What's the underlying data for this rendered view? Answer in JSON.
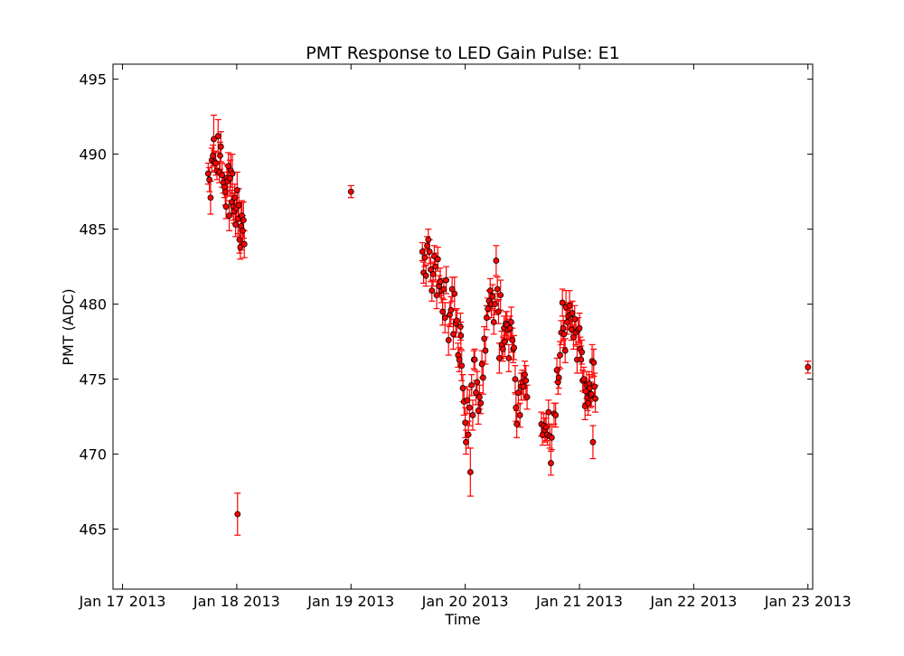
{
  "chart_data": {
    "type": "scatter",
    "title": "PMT Response to LED Gain Pulse: E1",
    "xlabel": "Time",
    "ylabel": "PMT (ADC)",
    "x_ticks": [
      "Jan 17 2013",
      "Jan 18 2013",
      "Jan 19 2013",
      "Jan 20 2013",
      "Jan 21 2013",
      "Jan 22 2013",
      "Jan 23 2013"
    ],
    "y_ticks": [
      465,
      470,
      475,
      480,
      485,
      490,
      495
    ],
    "xlim": [
      "2013-01-16 22:00",
      "2013-01-23 01:00"
    ],
    "ylim": [
      461,
      496
    ],
    "grid": false,
    "marker_color": "#ff0000",
    "errorbar_color": "#ff0000",
    "marker_edge_color": "#000000",
    "points": [
      {
        "x": "2013-01-17 18:00",
        "y": 488.7,
        "err": 0.7
      },
      {
        "x": "2013-01-17 18:15",
        "y": 488.3,
        "err": 0.8
      },
      {
        "x": "2013-01-17 18:30",
        "y": 487.1,
        "err": 1.1
      },
      {
        "x": "2013-01-17 18:45",
        "y": 489.6,
        "err": 0.8
      },
      {
        "x": "2013-01-17 19:00",
        "y": 489.9,
        "err": 0.7
      },
      {
        "x": "2013-01-17 19:10",
        "y": 491.0,
        "err": 1.6
      },
      {
        "x": "2013-01-17 19:20",
        "y": 489.5,
        "err": 0.6
      },
      {
        "x": "2013-01-17 19:35",
        "y": 489.4,
        "err": 0.8
      },
      {
        "x": "2013-01-17 19:50",
        "y": 488.9,
        "err": 0.6
      },
      {
        "x": "2013-01-17 20:05",
        "y": 491.2,
        "err": 1.1
      },
      {
        "x": "2013-01-17 20:20",
        "y": 488.8,
        "err": 0.7
      },
      {
        "x": "2013-01-17 20:30",
        "y": 489.9,
        "err": 0.9
      },
      {
        "x": "2013-01-17 20:40",
        "y": 490.5,
        "err": 1.0
      },
      {
        "x": "2013-01-17 20:55",
        "y": 488.6,
        "err": 0.8
      },
      {
        "x": "2013-01-17 21:10",
        "y": 488.1,
        "err": 0.7
      },
      {
        "x": "2013-01-17 21:25",
        "y": 487.8,
        "err": 0.7
      },
      {
        "x": "2013-01-17 21:35",
        "y": 487.5,
        "err": 0.9
      },
      {
        "x": "2013-01-17 21:45",
        "y": 486.5,
        "err": 0.8
      },
      {
        "x": "2013-01-17 21:55",
        "y": 488.4,
        "err": 0.9
      },
      {
        "x": "2013-01-17 22:05",
        "y": 488.2,
        "err": 1.0
      },
      {
        "x": "2013-01-17 22:15",
        "y": 489.2,
        "err": 0.9
      },
      {
        "x": "2013-01-17 22:25",
        "y": 485.9,
        "err": 1.0
      },
      {
        "x": "2013-01-17 22:35",
        "y": 488.4,
        "err": 1.2
      },
      {
        "x": "2013-01-17 22:45",
        "y": 488.9,
        "err": 1.1
      },
      {
        "x": "2013-01-17 22:55",
        "y": 486.8,
        "err": 0.8
      },
      {
        "x": "2013-01-17 23:05",
        "y": 488.7,
        "err": 1.3
      },
      {
        "x": "2013-01-17 23:15",
        "y": 486.5,
        "err": 0.9
      },
      {
        "x": "2013-01-17 23:25",
        "y": 486.2,
        "err": 0.8
      },
      {
        "x": "2013-01-17 23:35",
        "y": 487.1,
        "err": 0.9
      },
      {
        "x": "2013-01-17 23:45",
        "y": 485.3,
        "err": 0.8
      },
      {
        "x": "2013-01-17 23:55",
        "y": 486.4,
        "err": 0.7
      },
      {
        "x": "2013-01-18 00:05",
        "y": 487.6,
        "err": 1.2
      },
      {
        "x": "2013-01-18 00:15",
        "y": 485.7,
        "err": 1.0
      },
      {
        "x": "2013-01-18 00:25",
        "y": 486.6,
        "err": 1.1
      },
      {
        "x": "2013-01-18 00:35",
        "y": 484.3,
        "err": 0.9
      },
      {
        "x": "2013-01-18 00:45",
        "y": 483.8,
        "err": 0.8
      },
      {
        "x": "2013-01-18 00:55",
        "y": 485.2,
        "err": 1.6
      },
      {
        "x": "2013-01-18 01:05",
        "y": 485.9,
        "err": 1.0
      },
      {
        "x": "2013-01-18 01:15",
        "y": 484.9,
        "err": 1.0
      },
      {
        "x": "2013-01-18 01:25",
        "y": 485.6,
        "err": 1.2
      },
      {
        "x": "2013-01-18 01:35",
        "y": 484.0,
        "err": 0.9
      },
      {
        "x": "2013-01-18 00:10",
        "y": 466.0,
        "err": 1.4
      },
      {
        "x": "2013-01-19 00:00",
        "y": 487.5,
        "err": 0.4
      },
      {
        "x": "2013-01-19 15:00",
        "y": 483.5,
        "err": 0.6
      },
      {
        "x": "2013-01-19 15:15",
        "y": 482.1,
        "err": 0.7
      },
      {
        "x": "2013-01-19 15:30",
        "y": 483.1,
        "err": 0.6
      },
      {
        "x": "2013-01-19 15:45",
        "y": 481.9,
        "err": 0.7
      },
      {
        "x": "2013-01-19 16:00",
        "y": 483.9,
        "err": 0.6
      },
      {
        "x": "2013-01-19 16:15",
        "y": 484.3,
        "err": 0.7
      },
      {
        "x": "2013-01-19 16:30",
        "y": 483.5,
        "err": 0.8
      },
      {
        "x": "2013-01-19 16:45",
        "y": 482.3,
        "err": 0.8
      },
      {
        "x": "2013-01-19 17:00",
        "y": 480.9,
        "err": 0.7
      },
      {
        "x": "2013-01-19 17:15",
        "y": 482.0,
        "err": 0.8
      },
      {
        "x": "2013-01-19 17:30",
        "y": 483.2,
        "err": 0.7
      },
      {
        "x": "2013-01-19 17:45",
        "y": 482.5,
        "err": 0.9
      },
      {
        "x": "2013-01-19 18:00",
        "y": 480.6,
        "err": 0.9
      },
      {
        "x": "2013-01-19 18:15",
        "y": 483.0,
        "err": 0.8
      },
      {
        "x": "2013-01-19 18:30",
        "y": 481.2,
        "err": 0.7
      },
      {
        "x": "2013-01-19 18:45",
        "y": 481.5,
        "err": 0.9
      },
      {
        "x": "2013-01-19 19:00",
        "y": 480.9,
        "err": 0.8
      },
      {
        "x": "2013-01-19 19:15",
        "y": 479.5,
        "err": 0.9
      },
      {
        "x": "2013-01-19 19:30",
        "y": 481.0,
        "err": 0.7
      },
      {
        "x": "2013-01-19 19:45",
        "y": 479.1,
        "err": 1.0
      },
      {
        "x": "2013-01-19 20:00",
        "y": 481.6,
        "err": 0.9
      },
      {
        "x": "2013-01-19 20:30",
        "y": 477.6,
        "err": 1.0
      },
      {
        "x": "2013-01-19 20:45",
        "y": 479.3,
        "err": 0.8
      },
      {
        "x": "2013-01-19 21:00",
        "y": 479.6,
        "err": 0.9
      },
      {
        "x": "2013-01-19 21:15",
        "y": 481.0,
        "err": 0.8
      },
      {
        "x": "2013-01-19 21:30",
        "y": 478.0,
        "err": 1.0
      },
      {
        "x": "2013-01-19 21:45",
        "y": 480.7,
        "err": 1.1
      },
      {
        "x": "2013-01-19 22:00",
        "y": 478.7,
        "err": 0.9
      },
      {
        "x": "2013-01-19 22:15",
        "y": 478.9,
        "err": 0.8
      },
      {
        "x": "2013-01-19 22:30",
        "y": 476.6,
        "err": 0.8
      },
      {
        "x": "2013-01-19 22:45",
        "y": 476.3,
        "err": 0.8
      },
      {
        "x": "2013-01-19 23:00",
        "y": 478.5,
        "err": 0.9
      },
      {
        "x": "2013-01-19 23:05",
        "y": 477.9,
        "err": 0.9
      },
      {
        "x": "2013-01-19 23:15",
        "y": 475.9,
        "err": 1.0
      },
      {
        "x": "2013-01-19 23:30",
        "y": 474.4,
        "err": 0.9
      },
      {
        "x": "2013-01-19 23:45",
        "y": 473.5,
        "err": 0.9
      },
      {
        "x": "2013-01-20 00:00",
        "y": 472.1,
        "err": 1.0
      },
      {
        "x": "2013-01-20 00:10",
        "y": 470.8,
        "err": 0.8
      },
      {
        "x": "2013-01-20 00:25",
        "y": 473.6,
        "err": 0.9
      },
      {
        "x": "2013-01-20 00:40",
        "y": 471.3,
        "err": 0.9
      },
      {
        "x": "2013-01-20 00:55",
        "y": 473.1,
        "err": 1.2
      },
      {
        "x": "2013-01-20 01:05",
        "y": 468.8,
        "err": 1.6
      },
      {
        "x": "2013-01-20 01:20",
        "y": 474.6,
        "err": 0.7
      },
      {
        "x": "2013-01-20 01:35",
        "y": 472.6,
        "err": 1.0
      },
      {
        "x": "2013-01-20 01:50",
        "y": 476.3,
        "err": 0.6
      },
      {
        "x": "2013-01-20 02:00",
        "y": 476.3,
        "err": 0.7
      },
      {
        "x": "2013-01-20 02:15",
        "y": 474.1,
        "err": 0.8
      },
      {
        "x": "2013-01-20 02:30",
        "y": 474.8,
        "err": 0.7
      },
      {
        "x": "2013-01-20 02:45",
        "y": 472.9,
        "err": 0.9
      },
      {
        "x": "2013-01-20 03:00",
        "y": 473.8,
        "err": 0.8
      },
      {
        "x": "2013-01-20 03:15",
        "y": 473.4,
        "err": 0.7
      },
      {
        "x": "2013-01-20 03:30",
        "y": 476.0,
        "err": 0.9
      },
      {
        "x": "2013-01-20 03:45",
        "y": 475.1,
        "err": 1.1
      },
      {
        "x": "2013-01-20 04:00",
        "y": 477.7,
        "err": 0.8
      },
      {
        "x": "2013-01-20 04:15",
        "y": 476.9,
        "err": 0.9
      },
      {
        "x": "2013-01-20 04:30",
        "y": 479.1,
        "err": 0.8
      },
      {
        "x": "2013-01-20 04:45",
        "y": 479.7,
        "err": 0.7
      },
      {
        "x": "2013-01-20 05:00",
        "y": 480.2,
        "err": 0.7
      },
      {
        "x": "2013-01-20 05:15",
        "y": 480.9,
        "err": 0.8
      },
      {
        "x": "2013-01-20 05:30",
        "y": 480.0,
        "err": 0.9
      },
      {
        "x": "2013-01-20 05:45",
        "y": 480.5,
        "err": 0.8
      },
      {
        "x": "2013-01-20 06:00",
        "y": 478.8,
        "err": 0.8
      },
      {
        "x": "2013-01-20 06:15",
        "y": 480.0,
        "err": 0.7
      },
      {
        "x": "2013-01-20 06:30",
        "y": 482.9,
        "err": 1.0
      },
      {
        "x": "2013-01-20 06:45",
        "y": 481.0,
        "err": 0.8
      },
      {
        "x": "2013-01-20 07:00",
        "y": 479.5,
        "err": 0.8
      },
      {
        "x": "2013-01-20 07:10",
        "y": 476.4,
        "err": 1.0
      },
      {
        "x": "2013-01-20 07:25",
        "y": 480.6,
        "err": 1.0
      },
      {
        "x": "2013-01-20 07:40",
        "y": 477.3,
        "err": 0.9
      },
      {
        "x": "2013-01-20 07:55",
        "y": 477.0,
        "err": 0.8
      },
      {
        "x": "2013-01-20 08:10",
        "y": 478.4,
        "err": 0.8
      },
      {
        "x": "2013-01-20 08:20",
        "y": 477.5,
        "err": 1.0
      },
      {
        "x": "2013-01-20 08:30",
        "y": 478.7,
        "err": 0.8
      },
      {
        "x": "2013-01-20 08:45",
        "y": 478.6,
        "err": 0.9
      },
      {
        "x": "2013-01-20 09:00",
        "y": 478.3,
        "err": 0.7
      },
      {
        "x": "2013-01-20 09:10",
        "y": 476.4,
        "err": 0.9
      },
      {
        "x": "2013-01-20 09:25",
        "y": 478.4,
        "err": 0.8
      },
      {
        "x": "2013-01-20 09:40",
        "y": 478.8,
        "err": 1.0
      },
      {
        "x": "2013-01-20 09:55",
        "y": 477.6,
        "err": 0.8
      },
      {
        "x": "2013-01-20 10:05",
        "y": 477.0,
        "err": 0.9
      },
      {
        "x": "2013-01-20 10:15",
        "y": 477.1,
        "err": 0.8
      },
      {
        "x": "2013-01-20 10:30",
        "y": 475.0,
        "err": 0.9
      },
      {
        "x": "2013-01-20 10:40",
        "y": 473.1,
        "err": 0.9
      },
      {
        "x": "2013-01-20 10:50",
        "y": 472.0,
        "err": 0.9
      },
      {
        "x": "2013-01-20 11:10",
        "y": 474.1,
        "err": 0.8
      },
      {
        "x": "2013-01-20 11:30",
        "y": 472.6,
        "err": 0.8
      },
      {
        "x": "2013-01-20 11:45",
        "y": 474.5,
        "err": 0.9
      },
      {
        "x": "2013-01-20 12:00",
        "y": 474.8,
        "err": 0.8
      },
      {
        "x": "2013-01-20 12:15",
        "y": 474.5,
        "err": 0.9
      },
      {
        "x": "2013-01-20 12:30",
        "y": 475.3,
        "err": 0.9
      },
      {
        "x": "2013-01-20 12:45",
        "y": 474.9,
        "err": 1.0
      },
      {
        "x": "2013-01-20 13:00",
        "y": 473.8,
        "err": 0.8
      },
      {
        "x": "2013-01-20 16:00",
        "y": 472.0,
        "err": 0.8
      },
      {
        "x": "2013-01-20 16:15",
        "y": 471.3,
        "err": 0.7
      },
      {
        "x": "2013-01-20 16:30",
        "y": 471.9,
        "err": 0.8
      },
      {
        "x": "2013-01-20 16:45",
        "y": 471.6,
        "err": 0.8
      },
      {
        "x": "2013-01-20 17:00",
        "y": 471.8,
        "err": 0.9
      },
      {
        "x": "2013-01-20 17:15",
        "y": 471.3,
        "err": 0.7
      },
      {
        "x": "2013-01-20 17:30",
        "y": 472.8,
        "err": 0.8
      },
      {
        "x": "2013-01-20 17:45",
        "y": 471.2,
        "err": 0.8
      },
      {
        "x": "2013-01-20 18:00",
        "y": 469.4,
        "err": 0.8
      },
      {
        "x": "2013-01-20 18:10",
        "y": 471.1,
        "err": 0.8
      },
      {
        "x": "2013-01-20 18:40",
        "y": 472.7,
        "err": 0.7
      },
      {
        "x": "2013-01-20 19:00",
        "y": 472.6,
        "err": 0.8
      },
      {
        "x": "2013-01-20 19:15",
        "y": 475.6,
        "err": 0.8
      },
      {
        "x": "2013-01-20 19:30",
        "y": 474.8,
        "err": 0.8
      },
      {
        "x": "2013-01-20 19:40",
        "y": 475.1,
        "err": 0.7
      },
      {
        "x": "2013-01-20 19:55",
        "y": 476.6,
        "err": 0.9
      },
      {
        "x": "2013-01-20 20:10",
        "y": 478.1,
        "err": 0.8
      },
      {
        "x": "2013-01-20 20:25",
        "y": 480.1,
        "err": 0.9
      },
      {
        "x": "2013-01-20 20:35",
        "y": 478.4,
        "err": 0.8
      },
      {
        "x": "2013-01-20 20:45",
        "y": 478.0,
        "err": 0.9
      },
      {
        "x": "2013-01-20 21:00",
        "y": 476.9,
        "err": 0.8
      },
      {
        "x": "2013-01-20 21:10",
        "y": 479.8,
        "err": 1.1
      },
      {
        "x": "2013-01-20 21:25",
        "y": 478.8,
        "err": 0.8
      },
      {
        "x": "2013-01-20 21:40",
        "y": 479.2,
        "err": 0.9
      },
      {
        "x": "2013-01-20 21:55",
        "y": 479.9,
        "err": 1.0
      },
      {
        "x": "2013-01-20 22:05",
        "y": 479.3,
        "err": 0.8
      },
      {
        "x": "2013-01-20 22:20",
        "y": 478.3,
        "err": 0.7
      },
      {
        "x": "2013-01-20 22:30",
        "y": 479.4,
        "err": 0.8
      },
      {
        "x": "2013-01-20 22:45",
        "y": 477.8,
        "err": 0.8
      },
      {
        "x": "2013-01-20 23:00",
        "y": 479.0,
        "err": 0.9
      },
      {
        "x": "2013-01-20 23:15",
        "y": 478.1,
        "err": 0.8
      },
      {
        "x": "2013-01-20 23:30",
        "y": 476.3,
        "err": 0.9
      },
      {
        "x": "2013-01-20 23:45",
        "y": 478.3,
        "err": 0.8
      },
      {
        "x": "2013-01-21 00:00",
        "y": 478.4,
        "err": 1.0
      },
      {
        "x": "2013-01-21 00:10",
        "y": 477.0,
        "err": 0.8
      },
      {
        "x": "2013-01-21 00:20",
        "y": 476.3,
        "err": 0.9
      },
      {
        "x": "2013-01-21 00:30",
        "y": 476.8,
        "err": 0.8
      },
      {
        "x": "2013-01-21 00:40",
        "y": 474.9,
        "err": 0.7
      },
      {
        "x": "2013-01-21 00:55",
        "y": 475.0,
        "err": 0.8
      },
      {
        "x": "2013-01-21 01:10",
        "y": 473.2,
        "err": 0.9
      },
      {
        "x": "2013-01-21 01:20",
        "y": 474.2,
        "err": 0.8
      },
      {
        "x": "2013-01-21 01:30",
        "y": 474.6,
        "err": 0.9
      },
      {
        "x": "2013-01-21 01:40",
        "y": 473.8,
        "err": 0.9
      },
      {
        "x": "2013-01-21 01:50",
        "y": 473.4,
        "err": 0.8
      },
      {
        "x": "2013-01-21 02:00",
        "y": 474.7,
        "err": 0.8
      },
      {
        "x": "2013-01-21 02:10",
        "y": 474.4,
        "err": 0.9
      },
      {
        "x": "2013-01-21 02:20",
        "y": 473.9,
        "err": 0.8
      },
      {
        "x": "2013-01-21 02:30",
        "y": 474.0,
        "err": 0.8
      },
      {
        "x": "2013-01-21 02:40",
        "y": 476.2,
        "err": 1.1
      },
      {
        "x": "2013-01-21 02:50",
        "y": 470.8,
        "err": 1.1
      },
      {
        "x": "2013-01-21 03:00",
        "y": 476.1,
        "err": 0.9
      },
      {
        "x": "2013-01-21 03:10",
        "y": 474.5,
        "err": 0.9
      },
      {
        "x": "2013-01-21 03:20",
        "y": 473.7,
        "err": 0.9
      },
      {
        "x": "2013-01-23 00:00",
        "y": 475.8,
        "err": 0.4
      }
    ]
  }
}
